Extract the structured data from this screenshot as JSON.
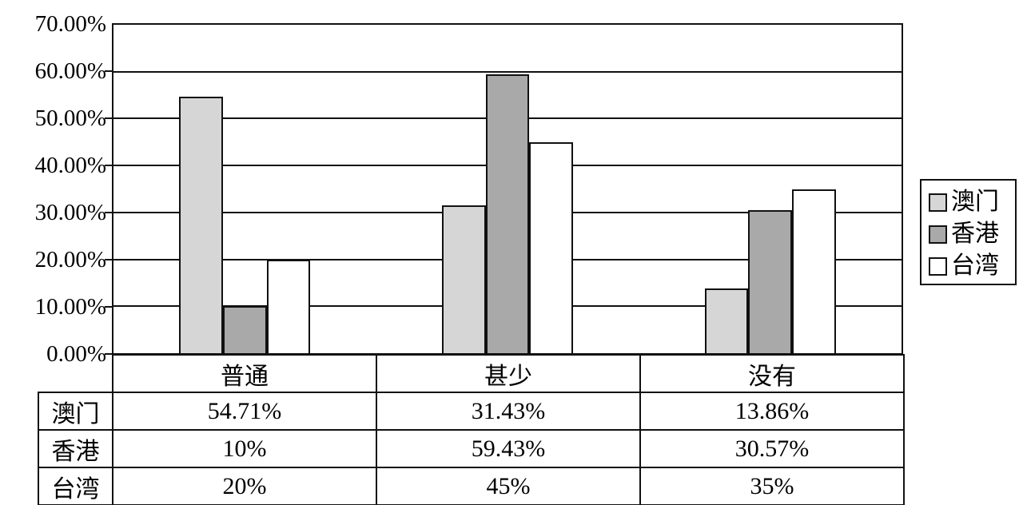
{
  "chart_data": {
    "type": "bar",
    "categories": [
      "普通",
      "甚少",
      "没有"
    ],
    "series": [
      {
        "name": "澳门",
        "values": [
          54.71,
          31.43,
          13.86
        ],
        "display": [
          "54.71%",
          "31.43%",
          "13.86%"
        ],
        "color": "#d6d6d6"
      },
      {
        "name": "香港",
        "values": [
          10,
          59.43,
          30.57
        ],
        "display": [
          "10%",
          "59.43%",
          "30.57%"
        ],
        "color": "#a9a9a9"
      },
      {
        "name": "台湾",
        "values": [
          20,
          45,
          35
        ],
        "display": [
          "20%",
          "45%",
          "35%"
        ],
        "color": "#ffffff"
      }
    ],
    "y_axis": {
      "min": 0,
      "max": 70,
      "step": 10,
      "tick_labels_top_to_bottom": [
        "70.00%",
        "60.00%",
        "50.00%",
        "40.00%",
        "30.00%",
        "20.00%",
        "10.00%",
        "0.00%"
      ]
    },
    "grid": true,
    "legend": {
      "position": "right",
      "entries": [
        "澳门",
        "香港",
        "台湾"
      ]
    },
    "table": {
      "header": [
        "普通",
        "甚少",
        "没有"
      ],
      "rows": [
        {
          "label": "澳门",
          "cells": [
            "54.71%",
            "31.43%",
            "13.86%"
          ]
        },
        {
          "label": "香港",
          "cells": [
            "10%",
            "59.43%",
            "30.57%"
          ]
        },
        {
          "label": "台湾",
          "cells": [
            "20%",
            "45%",
            "35%"
          ]
        }
      ]
    },
    "colors": {
      "line": "#111111",
      "series_fills": [
        "#d6d6d6",
        "#a9a9a9",
        "#ffffff"
      ],
      "background": "#ffffff"
    }
  }
}
